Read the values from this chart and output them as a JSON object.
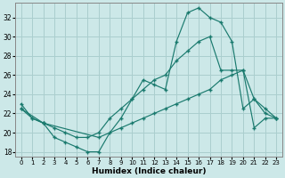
{
  "xlabel": "Humidex (Indice chaleur)",
  "background_color": "#cce8e8",
  "grid_color": "#aacece",
  "line_color": "#1a7a6e",
  "xlim": [
    -0.5,
    23.5
  ],
  "ylim": [
    17.5,
    33.5
  ],
  "yticks": [
    18,
    20,
    22,
    24,
    26,
    28,
    30,
    32
  ],
  "xticks": [
    0,
    1,
    2,
    3,
    4,
    5,
    6,
    7,
    8,
    9,
    10,
    11,
    12,
    13,
    14,
    15,
    16,
    17,
    18,
    19,
    20,
    21,
    22,
    23
  ],
  "line1_x": [
    0,
    1,
    2,
    3,
    4,
    5,
    6,
    7,
    8,
    9,
    10,
    11,
    12,
    13,
    14,
    15,
    16,
    17,
    18,
    19,
    20,
    21,
    22,
    23
  ],
  "line1_y": [
    23.0,
    21.5,
    21.0,
    19.5,
    19.0,
    18.5,
    18.0,
    18.0,
    20.0,
    21.5,
    23.5,
    25.5,
    25.0,
    24.5,
    29.5,
    32.5,
    33.0,
    32.0,
    31.5,
    29.5,
    22.5,
    23.5,
    22.5,
    21.5
  ],
  "line2_x": [
    0,
    1,
    2,
    3,
    4,
    5,
    6,
    7,
    8,
    9,
    10,
    11,
    12,
    13,
    14,
    15,
    16,
    17,
    18,
    19,
    20,
    21,
    22,
    23
  ],
  "line2_y": [
    22.5,
    21.5,
    21.0,
    20.5,
    20.0,
    19.5,
    19.5,
    20.0,
    21.5,
    22.5,
    23.5,
    24.5,
    25.5,
    26.0,
    27.5,
    28.5,
    29.5,
    30.0,
    26.5,
    26.5,
    26.5,
    23.5,
    22.0,
    21.5
  ],
  "line3_x": [
    0,
    2,
    7,
    9,
    10,
    11,
    12,
    13,
    14,
    15,
    16,
    17,
    18,
    19,
    20,
    21,
    22,
    23
  ],
  "line3_y": [
    22.5,
    21.0,
    19.5,
    20.5,
    21.0,
    21.5,
    22.0,
    22.5,
    23.0,
    23.5,
    24.0,
    24.5,
    25.5,
    26.0,
    26.5,
    20.5,
    21.5,
    21.5
  ]
}
